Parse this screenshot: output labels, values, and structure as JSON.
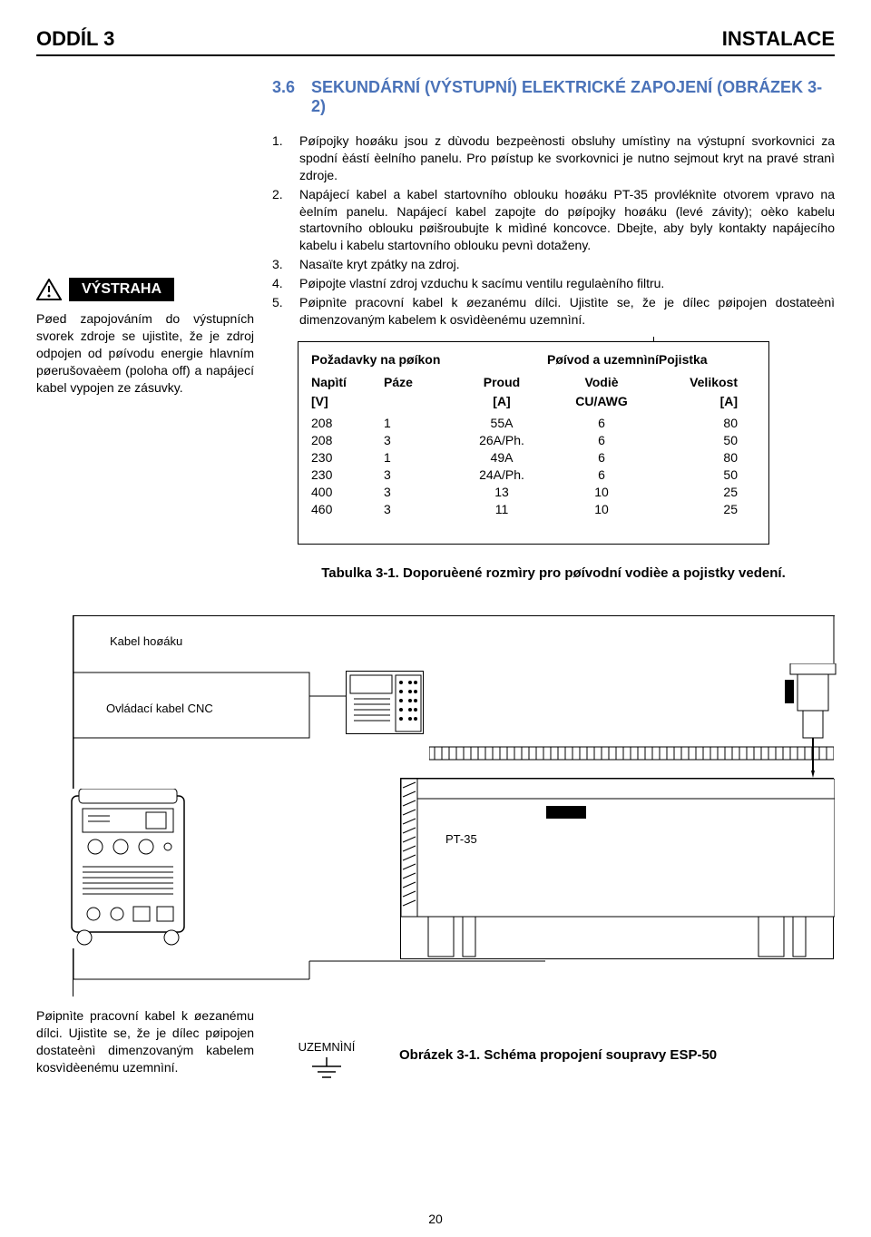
{
  "header": {
    "left": "ODDÍL 3",
    "right": "INSTALACE"
  },
  "section": {
    "number": "3.6",
    "title": "SEKUNDÁRNÍ (VÝSTUPNÍ) ELEKTRICKÉ ZAPOJENÍ (OBRÁZEK 3-2)"
  },
  "warning": {
    "label": "VÝSTRAHA",
    "text": "Pøed zapojováním do výstupních svorek zdroje se ujistìte, že je zdroj odpojen od pøívodu energie hlavním pøerušovaèem (poloha off) a napájecí kabel vypojen ze zásuvky."
  },
  "list": [
    {
      "n": "1.",
      "t": "Pøípojky hoøáku jsou z dùvodu bezpeènosti obsluhy umístìny na výstupní svorkovnici za spodní èástí èelního panelu. Pro pøístup ke svorkovnici je nutno sejmout kryt na pravé stranì zdroje."
    },
    {
      "n": "2.",
      "t": "Napájecí kabel a kabel startovního oblouku hoøáku PT-35 provléknìte otvorem vpravo na èelním panelu. Napájecí kabel zapojte do pøípojky hoøáku (levé závity); oèko kabelu startovního oblouku pøišroubujte k mìdìné koncovce. Dbejte, aby byly kontakty napájecího kabelu i kabelu startovního oblouku pevnì dotaženy."
    },
    {
      "n": "3.",
      "t": "Nasaïte kryt zpátky na zdroj."
    },
    {
      "n": "4.",
      "t": "Pøipojte vlastní zdroj vzduchu k sacímu ventilu regulaèního filtru."
    },
    {
      "n": "5.",
      "t": "Pøipnìte pracovní kabel k øezanému dílci. Ujistìte se, že je dílec pøipojen dostateènì dimenzovaným kabelem k osvìdèenému uzemnìní."
    }
  ],
  "req": {
    "hdr1": "Požadavky na pøíkon",
    "hdr2": "Pøívod a uzemnìníPojistka",
    "sub": {
      "a": "Napìtí",
      "b": "Páze",
      "c": "Proud",
      "d": "Vodiè",
      "e": "Velikost"
    },
    "unit": {
      "a": "[V]",
      "c": "[A]",
      "d": "CU/AWG",
      "e": "[A]"
    },
    "rows": [
      [
        "208",
        "1",
        "55A",
        "6",
        "80"
      ],
      [
        "208",
        "3",
        "26A/Ph.",
        "6",
        "50"
      ],
      [
        "230",
        "1",
        "49A",
        "6",
        "80"
      ],
      [
        "230",
        "3",
        "24A/Ph.",
        "6",
        "50"
      ],
      [
        "400",
        "3",
        "13",
        "10",
        "25"
      ],
      [
        "460",
        "3",
        "11",
        "10",
        "25"
      ]
    ]
  },
  "table_caption": "Tabulka 3-1. Doporuèené rozmìry pro pøívodní vodièe a pojistky vedení.",
  "diagram": {
    "torch_cable": "Kabel hoøáku",
    "cnc_cable": "Ovládací kabel CNC",
    "pt35": "PT-35"
  },
  "bottom_text": "Pøipnìte pracovní kabel k øezanému dílci. Ujistìte se, že je dílec pøipojen dostateènì dimenzovaným kabelem kosvìdèenému uzemnìní.",
  "ground_label": "UZEMNÌNÍ",
  "figure_caption": "Obrázek 3-1. Schéma propojení soupravy ESP-50",
  "page_number": "20",
  "colors": {
    "heading": "#4a72b8",
    "text": "#000000",
    "border": "#000000",
    "bg": "#ffffff"
  }
}
